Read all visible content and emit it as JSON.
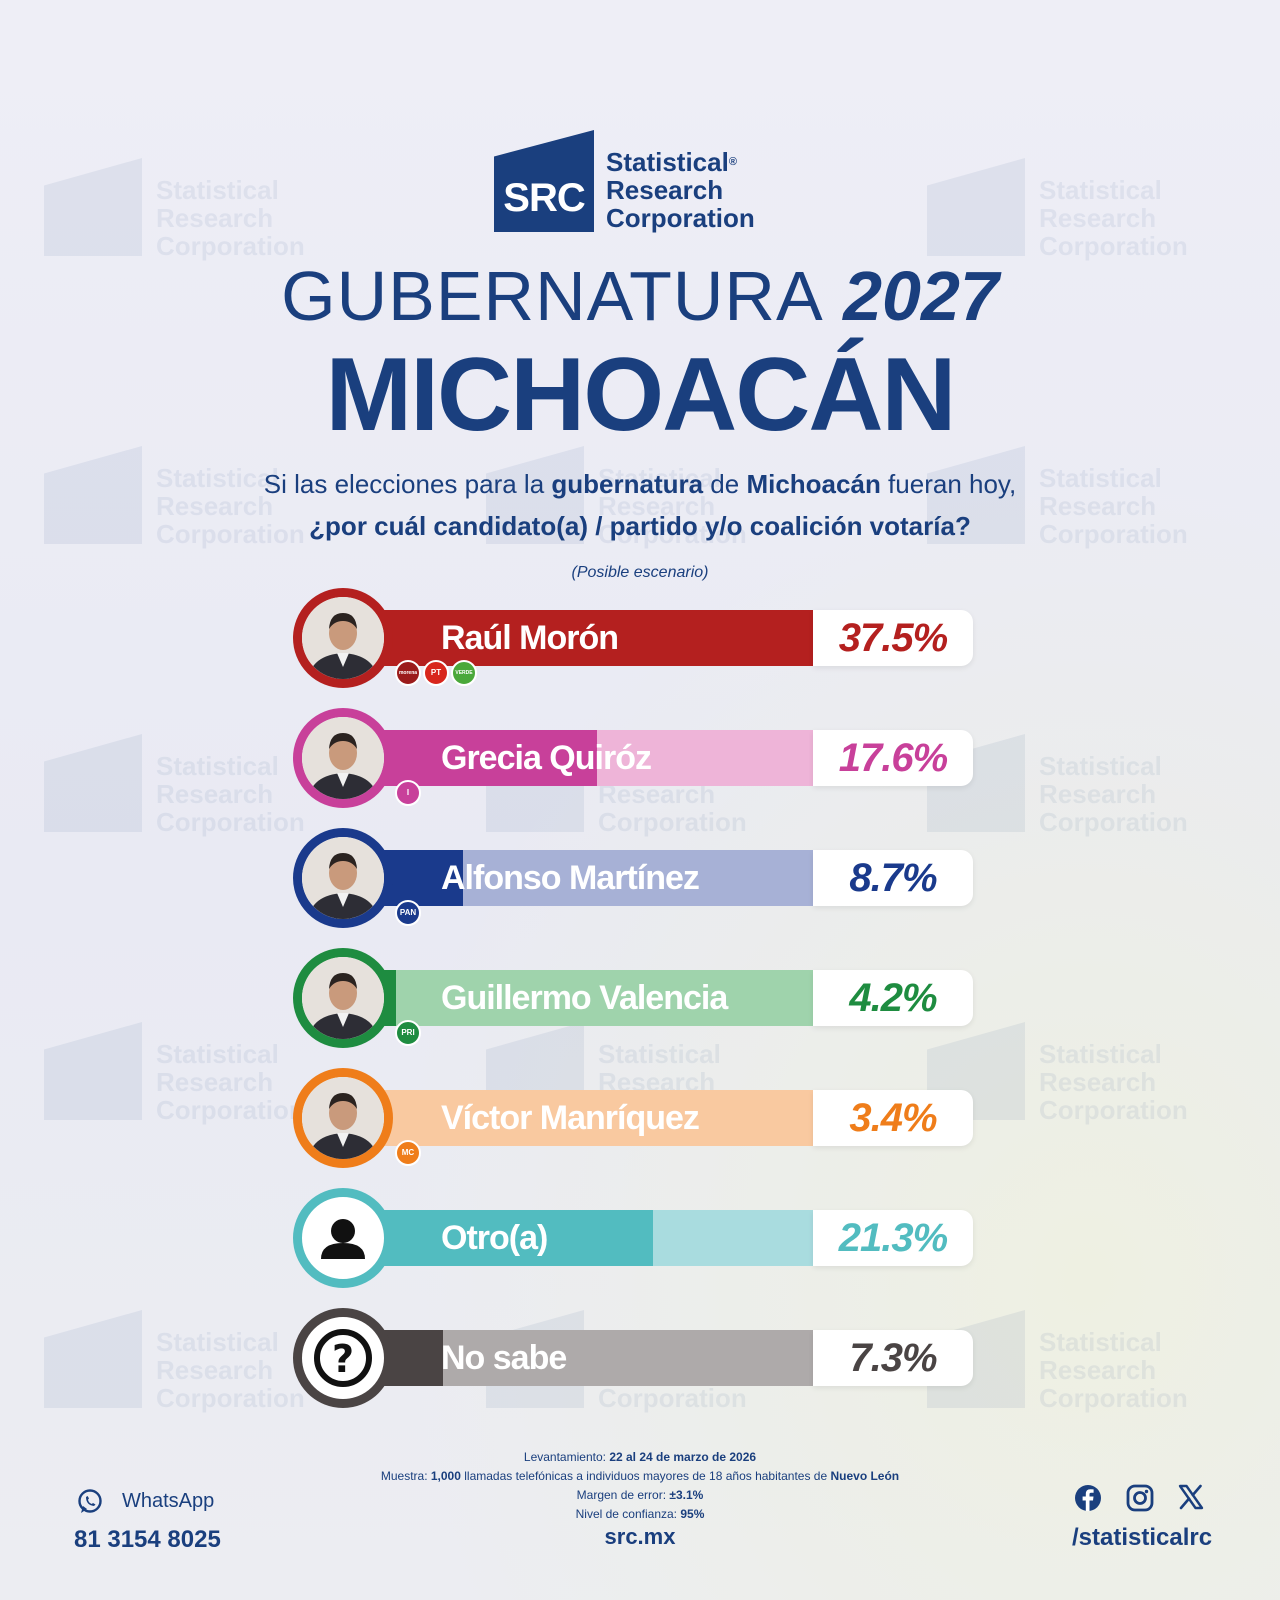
{
  "brand": {
    "logo_text": "SRC",
    "name_lines": [
      "Statistical",
      "Research",
      "Corporation"
    ],
    "registered_mark": "®",
    "color": "#1a3f7e"
  },
  "title": {
    "line1_light": "GUBERNATURA",
    "line1_year": "2027",
    "line2": "MICHOACÁN"
  },
  "question": {
    "l1_a": "Si las elecciones para la ",
    "l1_b": "gubernatura",
    "l1_c": " de ",
    "l1_d": "Michoacán",
    "l1_e": " fueran hoy,",
    "l2": "¿por cuál candidato(a) / partido y/o coalición votaría?"
  },
  "scenario": "(Posible escenario)",
  "chart_data": {
    "type": "bar",
    "categories": [
      "Raúl Morón",
      "Grecia Quiróz",
      "Alfonso Martínez",
      "Guillermo Valencia",
      "Víctor Manríquez",
      "Otro(a)",
      "No sabe"
    ],
    "values": [
      37.5,
      17.6,
      8.7,
      4.2,
      3.4,
      21.3,
      7.3
    ],
    "value_labels": [
      "37.5%",
      "17.6%",
      "8.7%",
      "4.2%",
      "3.4%",
      "21.3%",
      "7.3%"
    ],
    "unit": "%",
    "xlim": [
      0,
      40
    ],
    "colors": [
      "#b4201f",
      "#c8409a",
      "#1a3a8c",
      "#1e8c40",
      "#ef7d1a",
      "#52bcc0",
      "#4a4444"
    ],
    "track_colors": [
      "#d9a3a3",
      "#eeb4d8",
      "#a7b1d6",
      "#9fd3ac",
      "#f9c9a0",
      "#a9dcdf",
      "#aeaaaa"
    ],
    "avatar_icons": [
      "candidate-photo-icon",
      "candidate-photo-icon",
      "candidate-photo-icon",
      "candidate-photo-icon",
      "candidate-photo-icon",
      "person-silhouette-icon",
      "question-mark-icon"
    ],
    "party_badges": [
      [
        {
          "text": "morena",
          "color": "#9b1b1b"
        },
        {
          "text": "PT",
          "color": "#d8261c"
        },
        {
          "text": "VERDE",
          "color": "#4aa83a"
        }
      ],
      [
        {
          "text": "I",
          "color": "#c8409a"
        }
      ],
      [
        {
          "text": "PAN",
          "color": "#1a3a8c"
        }
      ],
      [
        {
          "text": "PRI",
          "color": "#1e8c40"
        }
      ],
      [
        {
          "text": "MC",
          "color": "#ef7d1a"
        }
      ],
      [],
      []
    ]
  },
  "footer": {
    "lev_label": "Levantamiento:",
    "lev_value": "22 al 24 de marzo de 2026",
    "muestra_label": "Muestra:",
    "muestra_value": "1,000",
    "muestra_mid": " llamadas telefónicas a individuos mayores de 18 años habitantes de ",
    "muestra_place": "Nuevo León",
    "margen_label": "Margen de error:",
    "margen_value": "±3.1%",
    "nivel_label": "Nivel de confianza:",
    "nivel_value": "95%"
  },
  "contact": {
    "whatsapp_label": "WhatsApp",
    "whatsapp_phone": "81 3154 8025",
    "site": "src.mx",
    "social_icons": [
      "facebook-icon",
      "instagram-icon",
      "x-icon"
    ],
    "handle": "/statisticalrc"
  }
}
